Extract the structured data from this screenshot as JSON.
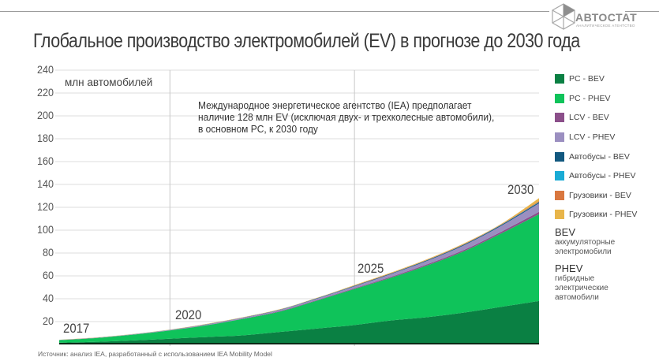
{
  "header": {
    "logo_text": "АВТОСТАТ",
    "logo_subtitle": "АНАЛИТИЧЕСКОЕ АГЕНТСТВО",
    "title": "Глобальное производство электромобилей (EV) в прогнозе до 2030 года"
  },
  "chart": {
    "unit_label": "млн автомобилей",
    "annotation_lines": [
      "Международное энергетическое агентство (IEA) предполагает",
      "наличие 128 млн EV (исключая двух- и трехколесные автомобили),",
      "в основном PC, к 2030 году"
    ],
    "year_labels": [
      "2017",
      "2020",
      "2025",
      "2030"
    ],
    "y_ticks": [
      "240",
      "220",
      "200",
      "180",
      "160",
      "140",
      "120",
      "100",
      "80",
      "60",
      "40",
      "20"
    ]
  },
  "legend": {
    "items": [
      {
        "label": "PC - BEV",
        "color": "#0a8043"
      },
      {
        "label": "PC - PHEV",
        "color": "#0fc35a"
      },
      {
        "label": "LCV - BEV",
        "color": "#8b4f8a"
      },
      {
        "label": "LCV - PHEV",
        "color": "#9b8fc0"
      },
      {
        "label": "Автобусы - BEV",
        "color": "#12587f"
      },
      {
        "label": "Автобусы - PHEV",
        "color": "#1aabd5"
      },
      {
        "label": "Грузовики - BEV",
        "color": "#d9773f"
      },
      {
        "label": "Грузовики - PHEV",
        "color": "#e8b54a"
      }
    ]
  },
  "definitions": [
    {
      "term": "BEV",
      "desc_lines": [
        "аккумуляторные",
        "электромобили"
      ]
    },
    {
      "term": "PHEV",
      "desc_lines": [
        "гибридные",
        "электрические",
        "автомобили"
      ]
    }
  ],
  "source": "Источник: анализ IEA, разработанный с использованием IEA Mobility Model",
  "chart_data": {
    "type": "area",
    "stacked": true,
    "title": "Глобальное производство электромобилей (EV) в прогнозе до 2030 года",
    "xlabel": "",
    "ylabel": "млн автомобилей",
    "ylim": [
      0,
      240
    ],
    "yticks": [
      20,
      40,
      60,
      80,
      100,
      120,
      140,
      160,
      180,
      200,
      220,
      240
    ],
    "grid": true,
    "legend_position": "right",
    "annotations": [
      {
        "x": 2017,
        "text": "2017"
      },
      {
        "x": 2020,
        "text": "2020"
      },
      {
        "x": 2025,
        "text": "2025"
      },
      {
        "x": 2030,
        "text": "2030"
      },
      {
        "text": "Международное энергетическое агентство (IEA) предполагает наличие 128 млн EV (исключая двух- и трехколесные автомобили), в основном PC, к 2030 году"
      }
    ],
    "x": [
      2017,
      2018,
      2019,
      2020,
      2021,
      2022,
      2023,
      2024,
      2025,
      2026,
      2027,
      2028,
      2029,
      2030
    ],
    "series": [
      {
        "name": "PC - BEV",
        "color": "#0a8043",
        "values": [
          1.5,
          2.3,
          3.5,
          5,
          6.5,
          8,
          11,
          14,
          17,
          21,
          24,
          28,
          33,
          38
        ]
      },
      {
        "name": "PC - PHEV",
        "color": "#0fc35a",
        "values": [
          2.2,
          3.3,
          5.0,
          7.2,
          10.3,
          14.5,
          18.0,
          24.5,
          31.5,
          37.5,
          45.5,
          54.0,
          64.5,
          76.0
        ]
      },
      {
        "name": "LCV - BEV",
        "color": "#8b4f8a",
        "values": [
          0.05,
          0.07,
          0.1,
          0.15,
          0.2,
          0.3,
          0.4,
          0.5,
          0.6,
          0.8,
          1.0,
          1.2,
          1.5,
          2.0
        ]
      },
      {
        "name": "LCV - PHEV",
        "color": "#9b8fc0",
        "values": [
          0.1,
          0.15,
          0.2,
          0.3,
          0.5,
          0.7,
          1.0,
          1.3,
          1.8,
          2.4,
          3.0,
          4.0,
          5.2,
          7.5
        ]
      },
      {
        "name": "Автобусы - BEV",
        "color": "#12587f",
        "values": [
          0.1,
          0.1,
          0.1,
          0.15,
          0.2,
          0.2,
          0.25,
          0.3,
          0.4,
          0.5,
          0.6,
          0.7,
          0.8,
          1.0
        ]
      },
      {
        "name": "Автобусы - PHEV",
        "color": "#1aabd5",
        "values": [
          0.02,
          0.02,
          0.03,
          0.03,
          0.04,
          0.05,
          0.05,
          0.06,
          0.07,
          0.08,
          0.1,
          0.1,
          0.15,
          0.2
        ]
      },
      {
        "name": "Грузовики - BEV",
        "color": "#d9773f",
        "values": [
          0.01,
          0.01,
          0.02,
          0.02,
          0.03,
          0.05,
          0.1,
          0.14,
          0.2,
          0.22,
          0.3,
          0.4,
          0.35,
          0.8
        ]
      },
      {
        "name": "Грузовики - PHEV",
        "color": "#e8b54a",
        "values": [
          0.1,
          0.15,
          0.15,
          0.15,
          0.23,
          0.2,
          0.2,
          0.2,
          0.43,
          0.5,
          0.5,
          0.6,
          0.5,
          2.5
        ]
      }
    ],
    "totals": [
      4,
      6,
      9,
      13,
      18,
      24,
      31,
      41,
      52,
      63,
      75,
      89,
      106,
      128
    ]
  }
}
